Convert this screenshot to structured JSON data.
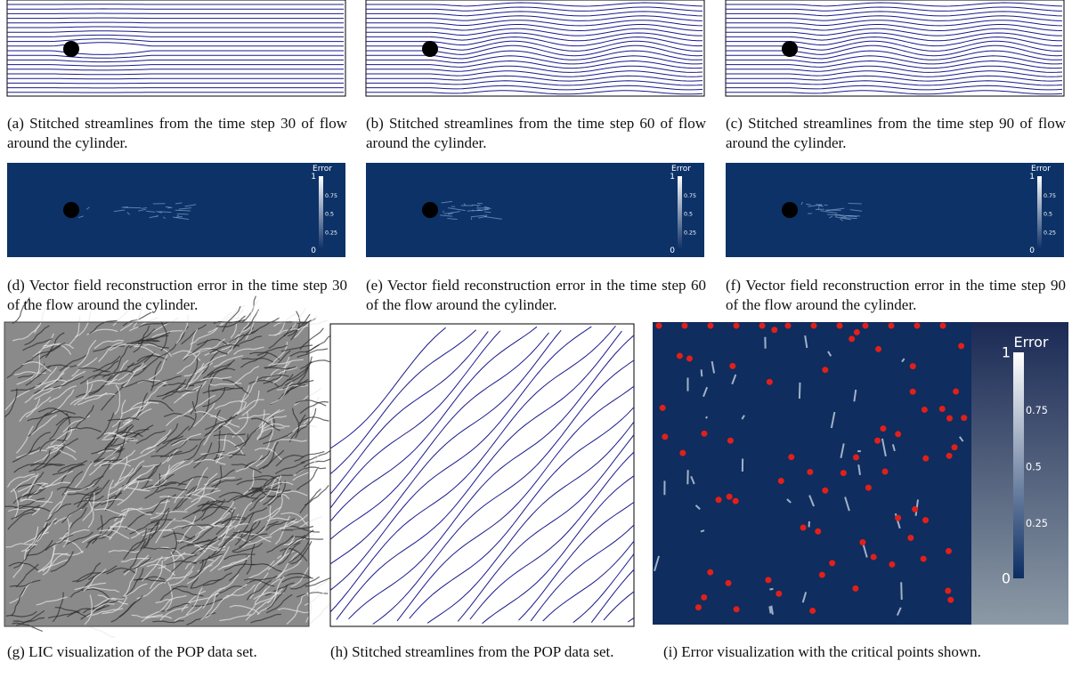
{
  "panels": [
    {
      "caption": "(a) Stitched streamlines from the time step 30 of flow around the cylinder."
    },
    {
      "caption": "(b) Stitched streamlines from the time step 60 of flow around the cylinder."
    },
    {
      "caption": "(c) Stitched streamlines from the time step 90 of flow around the cylinder."
    },
    {
      "caption": "(d) Vector field reconstruction error in the time step 30 of the flow around the cylinder."
    },
    {
      "caption": "(e) Vector field reconstruction error in the time step 60 of the flow around the cylinder."
    },
    {
      "caption": "(f) Vector field reconstruction error in the time step 90 of the flow around the cylinder."
    },
    {
      "caption": "(g) LIC visualization of the POP data set."
    },
    {
      "caption": "(h) Stitched streamlines from the POP data set."
    },
    {
      "caption": "(i) Error visualization with the critical points shown."
    }
  ],
  "colorbar": {
    "title": "Error",
    "ticks": [
      "1",
      "0.75",
      "0.5",
      "0.25",
      "0"
    ]
  }
}
